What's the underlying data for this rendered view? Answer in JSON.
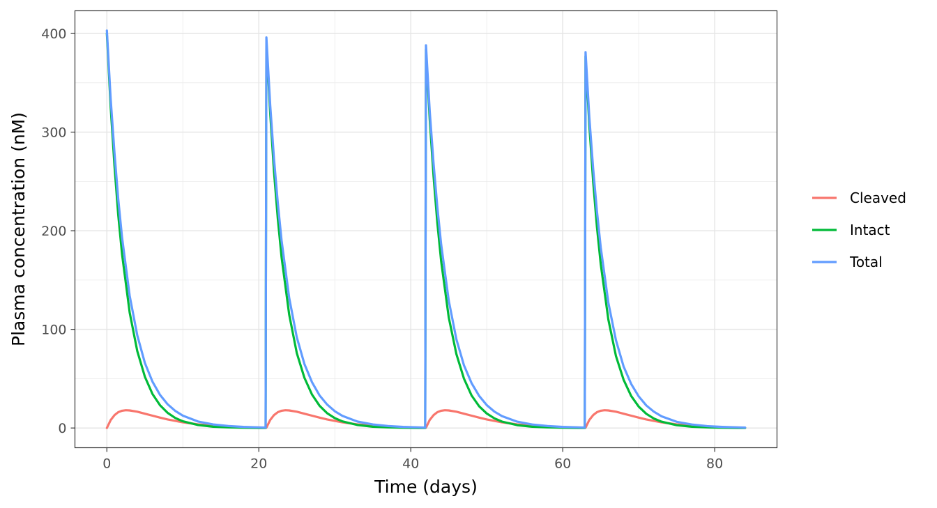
{
  "chart_data": {
    "type": "line",
    "title": "",
    "xlabel": "Time (days)",
    "ylabel": "Plasma concentration (nM)",
    "xlim": [
      -4.2,
      88.2
    ],
    "ylim": [
      -20,
      423
    ],
    "x_ticks": [
      0,
      20,
      40,
      60,
      80
    ],
    "y_ticks": [
      0,
      100,
      200,
      300,
      400
    ],
    "grid": true,
    "legend_position": "right",
    "series": [
      {
        "name": "Cleaved",
        "color": "#F8766D",
        "x": [
          0,
          0.5,
          1,
          1.5,
          2,
          2.5,
          3,
          4,
          5,
          6,
          7,
          8,
          10,
          12,
          14,
          16,
          18,
          20,
          21,
          21.5,
          22,
          22.5,
          23,
          23.5,
          24,
          25,
          26,
          27,
          28,
          29,
          31,
          33,
          35,
          37,
          39,
          41,
          42,
          42.5,
          43,
          43.5,
          44,
          44.5,
          45,
          46,
          47,
          48,
          49,
          50,
          52,
          54,
          56,
          58,
          60,
          62,
          63,
          63.5,
          64,
          64.5,
          65,
          65.5,
          66,
          67,
          68,
          69,
          70,
          71,
          73,
          75,
          77,
          79,
          81,
          83,
          84
        ],
        "y": [
          0,
          8,
          13,
          16,
          17.5,
          18,
          17.8,
          16.5,
          14.5,
          12.5,
          10.5,
          8.7,
          5.8,
          3.7,
          2.3,
          1.4,
          0.8,
          0.5,
          0.3,
          8.2,
          13.1,
          16,
          17.5,
          18,
          17.8,
          16.5,
          14.5,
          12.5,
          10.5,
          8.7,
          5.8,
          3.7,
          2.3,
          1.4,
          0.8,
          0.5,
          0.3,
          8.2,
          13.1,
          16,
          17.5,
          18,
          17.8,
          16.5,
          14.5,
          12.5,
          10.5,
          8.7,
          5.8,
          3.7,
          2.3,
          1.4,
          0.8,
          0.5,
          0.3,
          8.2,
          13.1,
          16,
          17.5,
          18,
          17.8,
          16.5,
          14.5,
          12.5,
          10.5,
          8.7,
          5.8,
          3.7,
          2.3,
          1.4,
          0.8,
          0.5,
          0.3
        ]
      },
      {
        "name": "Intact",
        "color": "#00BA38",
        "x": [
          0,
          0.5,
          1,
          1.5,
          2,
          3,
          4,
          5,
          6,
          7,
          8,
          9,
          10,
          12,
          14,
          16,
          18,
          20,
          20.9,
          21,
          21.5,
          22,
          22.5,
          23,
          24,
          25,
          26,
          27,
          28,
          29,
          30,
          31,
          33,
          35,
          37,
          39,
          41,
          41.9,
          42,
          42.5,
          43,
          43.5,
          44,
          45,
          46,
          47,
          48,
          49,
          50,
          51,
          52,
          54,
          56,
          58,
          60,
          62,
          62.9,
          63,
          63.5,
          64,
          64.5,
          65,
          66,
          67,
          68,
          69,
          70,
          71,
          72,
          73,
          75,
          77,
          79,
          81,
          83,
          84
        ],
        "y": [
          400,
          326,
          266,
          216,
          176,
          117,
          78,
          52,
          34.5,
          23,
          15.3,
          10.2,
          6.8,
          3,
          1.3,
          0.6,
          0.3,
          0.1,
          0.1,
          392,
          319,
          260,
          212,
          173,
          115,
          76,
          51,
          34,
          22.5,
          15,
          10,
          6.7,
          3,
          1.3,
          0.6,
          0.3,
          0.1,
          0.1,
          384,
          313,
          255,
          208,
          169,
          112,
          75,
          50,
          33,
          22,
          14.7,
          9.8,
          6.5,
          2.9,
          1.3,
          0.6,
          0.3,
          0.1,
          0.1,
          377,
          307,
          250,
          204,
          166,
          110,
          73,
          49,
          32.5,
          21.6,
          14.4,
          9.6,
          6.4,
          2.8,
          1.3,
          0.6,
          0.3,
          0.1,
          0.1
        ]
      },
      {
        "name": "Total",
        "color": "#619CFF",
        "x": [
          0,
          0.5,
          1,
          1.5,
          2,
          3,
          4,
          5,
          6,
          7,
          8,
          9,
          10,
          12,
          14,
          16,
          18,
          20,
          20.9,
          21,
          21.5,
          22,
          22.5,
          23,
          24,
          25,
          26,
          27,
          28,
          29,
          30,
          31,
          33,
          35,
          37,
          39,
          41,
          41.9,
          42,
          42.5,
          43,
          43.5,
          44,
          45,
          46,
          47,
          48,
          49,
          50,
          51,
          52,
          54,
          56,
          58,
          60,
          62,
          62.9,
          63,
          63.5,
          64,
          64.5,
          65,
          66,
          67,
          68,
          69,
          70,
          71,
          72,
          73,
          75,
          77,
          79,
          81,
          83,
          84
        ],
        "y": [
          403,
          334,
          279,
          232,
          193,
          134,
          94,
          66,
          47,
          33.5,
          24,
          17.3,
          12.5,
          6.6,
          3.6,
          2,
          1.1,
          0.6,
          0.4,
          396,
          327,
          273,
          228,
          190,
          132,
          92,
          65,
          46.5,
          33,
          23.7,
          17,
          12.3,
          6.5,
          3.6,
          2,
          1.1,
          0.6,
          0.4,
          388,
          321,
          268,
          224,
          186,
          129,
          90,
          63.5,
          45.5,
          32.5,
          23.2,
          16.7,
          12.1,
          6.4,
          3.5,
          2,
          1.1,
          0.6,
          0.4,
          381,
          315,
          263,
          220,
          183,
          127,
          89,
          62.5,
          44.7,
          32,
          22.9,
          16.5,
          11.9,
          6.3,
          3.5,
          1.9,
          1.1,
          0.6,
          0.4
        ]
      }
    ]
  }
}
